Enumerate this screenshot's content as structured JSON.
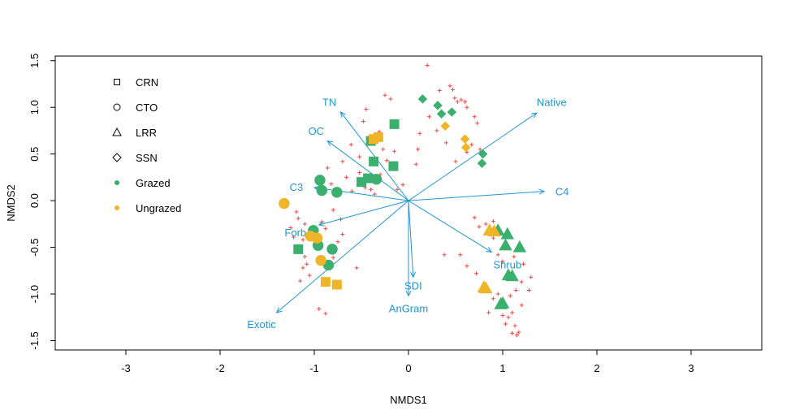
{
  "chart_data": {
    "type": "scatter",
    "title": "",
    "xlabel": "NMDS1",
    "ylabel": "NMDS2",
    "xlim": [
      -3.75,
      3.75
    ],
    "ylim": [
      -1.6,
      1.55
    ],
    "xticks": [
      -3,
      -2,
      -1,
      0,
      1,
      2,
      3
    ],
    "yticks": [
      -1.5,
      -1.0,
      -0.5,
      0.0,
      0.5,
      1.0,
      1.5
    ],
    "xtick_labels": [
      "-3",
      "-2",
      "-1",
      "0",
      "1",
      "2",
      "3"
    ],
    "ytick_labels": [
      "-1.5",
      "-1.0",
      "-0.5",
      "0.0",
      "0.5",
      "1.0",
      "1.5"
    ],
    "grid": false,
    "legend_position": "top-left",
    "colors": {
      "grazed": "#3aaf6e",
      "ungrazed": "#f0b428",
      "species": "#f04848",
      "vector": "#1f96d2"
    },
    "legend": [
      {
        "label": "CRN",
        "symbol": "square-open"
      },
      {
        "label": "CTO",
        "symbol": "circle-open"
      },
      {
        "label": "LRR",
        "symbol": "triangle-open"
      },
      {
        "label": "SSN",
        "symbol": "diamond-open"
      },
      {
        "label": "Grazed",
        "symbol": "dot-grazed"
      },
      {
        "label": "Ungrazed",
        "symbol": "dot-ungrazed"
      }
    ],
    "vectors": [
      {
        "label": "TN",
        "end": [
          -0.72,
          0.95
        ],
        "label_at": [
          -0.84,
          1.06
        ]
      },
      {
        "label": "OC",
        "end": [
          -0.86,
          0.64
        ],
        "label_at": [
          -0.98,
          0.75
        ]
      },
      {
        "label": "Native",
        "end": [
          1.36,
          0.94
        ],
        "label_at": [
          1.52,
          1.06
        ]
      },
      {
        "label": "C3",
        "end": [
          -1.0,
          0.14
        ],
        "label_at": [
          -1.19,
          0.15
        ]
      },
      {
        "label": "C4",
        "end": [
          1.44,
          0.1
        ],
        "label_at": [
          1.63,
          0.1
        ]
      },
      {
        "label": "Forb",
        "end": [
          -0.95,
          -0.26
        ],
        "label_at": [
          -1.2,
          -0.34
        ]
      },
      {
        "label": "Shrub",
        "end": [
          0.88,
          -0.55
        ],
        "label_at": [
          1.05,
          -0.68
        ]
      },
      {
        "label": "SDI",
        "end": [
          0.05,
          -0.82
        ],
        "label_at": [
          0.05,
          -0.91
        ]
      },
      {
        "label": "AnGram",
        "end": [
          0.0,
          -1.02
        ],
        "label_at": [
          0.0,
          -1.15
        ]
      },
      {
        "label": "Exotic",
        "end": [
          -1.4,
          -1.2
        ],
        "label_at": [
          -1.56,
          -1.32
        ]
      }
    ],
    "series": [
      {
        "name": "CRN Grazed",
        "shape": "square",
        "color": "grazed",
        "points": [
          [
            -0.15,
            0.82
          ],
          [
            -0.4,
            0.64
          ],
          [
            -0.37,
            0.42
          ],
          [
            -0.16,
            0.37
          ],
          [
            -0.43,
            0.24
          ],
          [
            -0.5,
            0.2
          ],
          [
            -1.17,
            -0.52
          ]
        ]
      },
      {
        "name": "CRN Ungrazed",
        "shape": "square",
        "color": "ungrazed",
        "points": [
          [
            -0.32,
            0.68
          ],
          [
            -0.37,
            0.66
          ],
          [
            -0.88,
            -0.87
          ],
          [
            -0.76,
            -0.9
          ]
        ]
      },
      {
        "name": "CTO Grazed",
        "shape": "circle",
        "color": "grazed",
        "points": [
          [
            -0.94,
            0.22
          ],
          [
            -0.92,
            0.11
          ],
          [
            -0.76,
            0.09
          ],
          [
            -0.34,
            0.23
          ],
          [
            -1.01,
            -0.32
          ],
          [
            -0.96,
            -0.48
          ],
          [
            -0.81,
            -0.52
          ],
          [
            -0.85,
            -0.69
          ]
        ]
      },
      {
        "name": "CTO Ungrazed",
        "shape": "circle",
        "color": "ungrazed",
        "points": [
          [
            -1.32,
            -0.03
          ],
          [
            -1.04,
            -0.38
          ],
          [
            -0.97,
            -0.4
          ],
          [
            -0.93,
            -0.64
          ]
        ]
      },
      {
        "name": "LRR Grazed",
        "shape": "triangle",
        "color": "grazed",
        "points": [
          [
            0.95,
            -0.32
          ],
          [
            1.05,
            -0.36
          ],
          [
            1.03,
            -0.48
          ],
          [
            1.18,
            -0.5
          ],
          [
            1.06,
            -0.8
          ],
          [
            1.1,
            -0.81
          ],
          [
            1.0,
            -1.1
          ],
          [
            0.98,
            -1.11
          ]
        ]
      },
      {
        "name": "LRR Ungrazed",
        "shape": "triangle",
        "color": "ungrazed",
        "points": [
          [
            0.86,
            -0.32
          ],
          [
            0.91,
            -0.33
          ],
          [
            0.8,
            -0.93
          ],
          [
            0.82,
            -0.94
          ]
        ]
      },
      {
        "name": "SSN Grazed",
        "shape": "diamond",
        "color": "grazed",
        "points": [
          [
            0.15,
            1.09
          ],
          [
            0.31,
            1.02
          ],
          [
            0.35,
            0.93
          ],
          [
            0.46,
            0.95
          ],
          [
            0.79,
            0.5
          ],
          [
            0.78,
            0.4
          ]
        ]
      },
      {
        "name": "SSN Ungrazed",
        "shape": "diamond",
        "color": "ungrazed",
        "points": [
          [
            0.39,
            0.8
          ],
          [
            0.6,
            0.66
          ],
          [
            0.61,
            0.57
          ]
        ]
      },
      {
        "name": "Species",
        "shape": "plus",
        "color": "species",
        "points": [
          [
            0.2,
            1.45
          ],
          [
            0.33,
            1.18
          ],
          [
            0.44,
            1.23
          ],
          [
            0.47,
            1.19
          ],
          [
            0.49,
            1.1
          ],
          [
            0.52,
            1.06
          ],
          [
            0.56,
            1.08
          ],
          [
            0.6,
            1.06
          ],
          [
            0.62,
            1.0
          ],
          [
            0.7,
            0.9
          ],
          [
            0.73,
            0.83
          ],
          [
            0.67,
            0.6
          ],
          [
            0.62,
            0.52
          ],
          [
            0.76,
            0.55
          ],
          [
            0.5,
            0.42
          ],
          [
            0.4,
            0.62
          ],
          [
            0.3,
            0.75
          ],
          [
            0.22,
            0.9
          ],
          [
            0.12,
            0.72
          ],
          [
            0.1,
            0.55
          ],
          [
            0.08,
            0.39
          ],
          [
            -0.25,
            1.13
          ],
          [
            -0.19,
            1.09
          ],
          [
            -0.45,
            0.98
          ],
          [
            -0.48,
            0.85
          ],
          [
            -0.61,
            0.6
          ],
          [
            -0.31,
            0.74
          ],
          [
            -0.27,
            0.55
          ],
          [
            -0.15,
            0.53
          ],
          [
            -0.52,
            0.47
          ],
          [
            -0.7,
            0.42
          ],
          [
            -0.86,
            0.35
          ],
          [
            -0.66,
            0.25
          ],
          [
            -0.52,
            0.3
          ],
          [
            -0.3,
            0.28
          ],
          [
            -0.23,
            0.43
          ],
          [
            -0.46,
            0.14
          ],
          [
            -0.4,
            0.12
          ],
          [
            -0.6,
            0.1
          ],
          [
            -0.06,
            0.17
          ],
          [
            -0.12,
            0.12
          ],
          [
            -0.36,
            0.07
          ],
          [
            -0.82,
            0.18
          ],
          [
            -0.75,
            0.12
          ],
          [
            -1.19,
            -0.12
          ],
          [
            -1.17,
            -0.19
          ],
          [
            -1.1,
            -0.25
          ],
          [
            -1.25,
            -0.29
          ],
          [
            -1.22,
            -0.39
          ],
          [
            -1.12,
            -0.42
          ],
          [
            -0.8,
            -0.1
          ],
          [
            -0.92,
            -0.23
          ],
          [
            -0.88,
            -0.3
          ],
          [
            -0.72,
            -0.2
          ],
          [
            -0.7,
            -0.36
          ],
          [
            -0.75,
            -0.44
          ],
          [
            -0.8,
            -0.61
          ],
          [
            -1.1,
            -0.6
          ],
          [
            -1.08,
            -0.68
          ],
          [
            -1.12,
            -0.72
          ],
          [
            -1.15,
            -0.86
          ],
          [
            -1.05,
            -0.8
          ],
          [
            -0.95,
            -1.16
          ],
          [
            -0.88,
            -1.21
          ],
          [
            -0.55,
            -0.72
          ],
          [
            0.7,
            -0.18
          ],
          [
            0.82,
            -0.25
          ],
          [
            0.9,
            -0.4
          ],
          [
            0.95,
            -0.58
          ],
          [
            1.0,
            -0.65
          ],
          [
            1.12,
            -0.6
          ],
          [
            1.22,
            -0.68
          ],
          [
            1.2,
            -0.87
          ],
          [
            1.28,
            -0.96
          ],
          [
            1.14,
            -0.96
          ],
          [
            1.08,
            -1.02
          ],
          [
            1.2,
            -1.12
          ],
          [
            1.1,
            -1.2
          ],
          [
            1.06,
            -1.25
          ],
          [
            1.0,
            -1.23
          ],
          [
            1.03,
            -1.32
          ],
          [
            1.13,
            -1.34
          ],
          [
            1.1,
            -1.42
          ],
          [
            1.15,
            -1.44
          ],
          [
            1.17,
            -1.41
          ],
          [
            0.95,
            -1.0
          ],
          [
            0.9,
            -1.05
          ],
          [
            0.72,
            -0.78
          ],
          [
            0.62,
            -0.7
          ],
          [
            0.55,
            -0.58
          ],
          [
            0.38,
            -0.58
          ],
          [
            0.85,
            -1.2
          ],
          [
            1.3,
            -0.82
          ],
          [
            0.9,
            -0.22
          ],
          [
            0.75,
            -0.28
          ]
        ]
      }
    ]
  }
}
